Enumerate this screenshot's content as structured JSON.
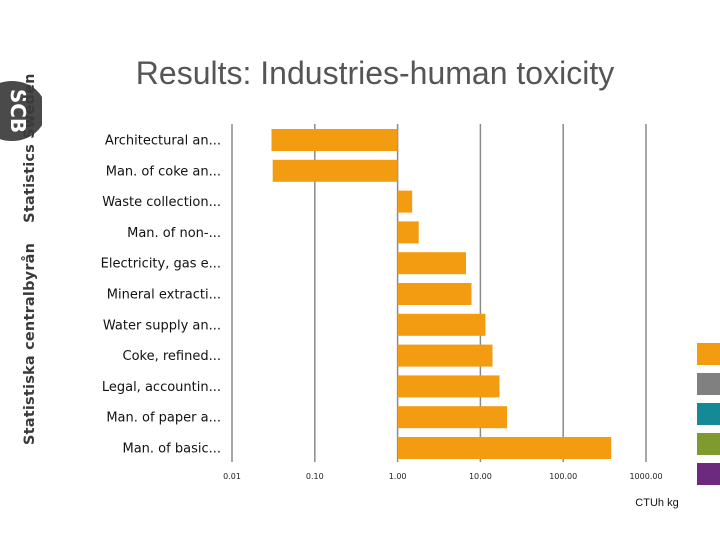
{
  "slide": {
    "title": "Results: Industries-human toxicity"
  },
  "branding": {
    "logo_text": "SCB",
    "org_name_local": "Statistiska centralbyrån",
    "org_name_en": "Statistics Sweden"
  },
  "chart_data": {
    "type": "bar",
    "orientation": "horizontal",
    "x_scale": "log",
    "xlim": [
      0.01,
      1000
    ],
    "xticks": [
      "0.01",
      "0.10",
      "1.00",
      "10.00",
      "100.00",
      "1000.00"
    ],
    "xlabel": "CTUh kg",
    "grid": "vertical",
    "categories": [
      "Architectural an...",
      "Man. of coke an...",
      "Waste collection...",
      "Man. of non-...",
      "Electricity, gas e...",
      "Mineral extracti...",
      "Water supply an...",
      "Coke, refined...",
      "Legal, accountin...",
      "Man. of paper a...",
      "Man. of basic..."
    ],
    "values": [
      0.03,
      0.031,
      1.5,
      1.8,
      6.7,
      7.8,
      11.5,
      14,
      17,
      21,
      380
    ],
    "bar_color": "#f39c12"
  },
  "legend": {
    "placement": "right",
    "colors": [
      "#f39c12",
      "#808080",
      "#138a95",
      "#7f9a2e",
      "#6b2a7e"
    ]
  }
}
